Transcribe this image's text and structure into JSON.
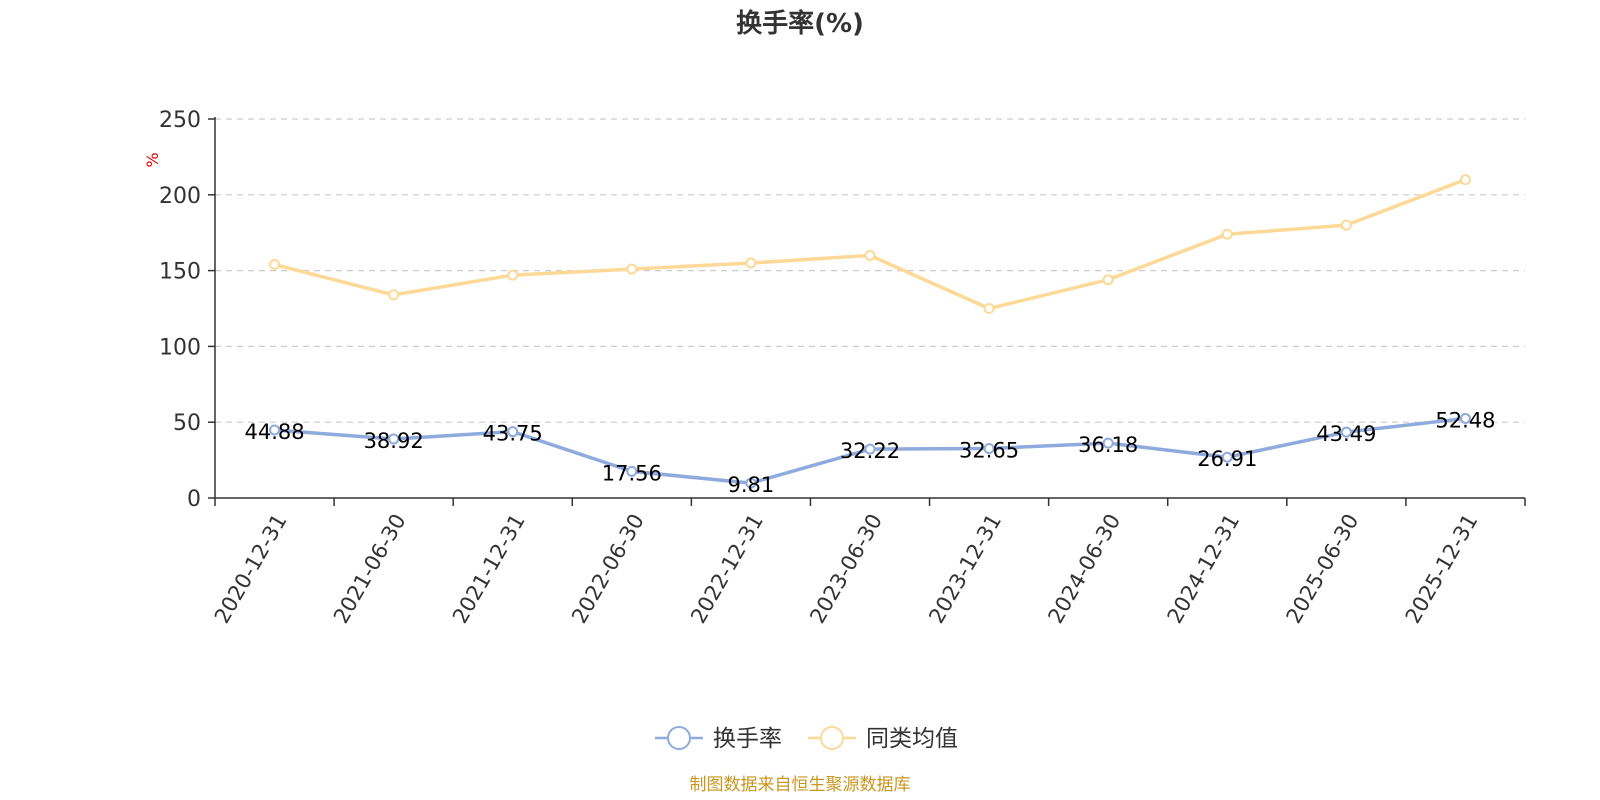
{
  "chart_data": {
    "type": "line",
    "title": "换手率(%)",
    "ylabel": "%",
    "ylim": [
      0,
      250
    ],
    "yticks": [
      0,
      50,
      100,
      150,
      200,
      250
    ],
    "grid": true,
    "legend_position": "bottom-center",
    "categories": [
      "2020-12-31",
      "2021-06-30",
      "2021-12-31",
      "2022-06-30",
      "2022-12-31",
      "2023-06-30",
      "2023-12-31",
      "2024-06-30",
      "2024-12-31",
      "2025-06-30",
      "2025-12-31"
    ],
    "series": [
      {
        "name": "换手率",
        "color": "#8FAADC",
        "values": [
          44.88,
          38.92,
          43.75,
          17.56,
          9.81,
          32.22,
          32.65,
          36.18,
          26.91,
          43.49,
          52.48
        ],
        "labels": [
          "44.88",
          "38.92",
          "43.75",
          "17.56",
          "9.81",
          "32.22",
          "32.65",
          "36.18",
          "26.91",
          "43.49",
          "52.48"
        ]
      },
      {
        "name": "同类均值",
        "color": "#FCD997",
        "values": [
          154,
          134,
          147,
          151,
          155,
          160,
          125,
          144,
          174,
          180,
          210
        ]
      }
    ]
  },
  "colors": {
    "axis": "#333333",
    "grid": "#CCCCCC",
    "unit": "#E00000",
    "source": "#C8961E"
  },
  "source_text": "制图数据来自恒生聚源数据库"
}
